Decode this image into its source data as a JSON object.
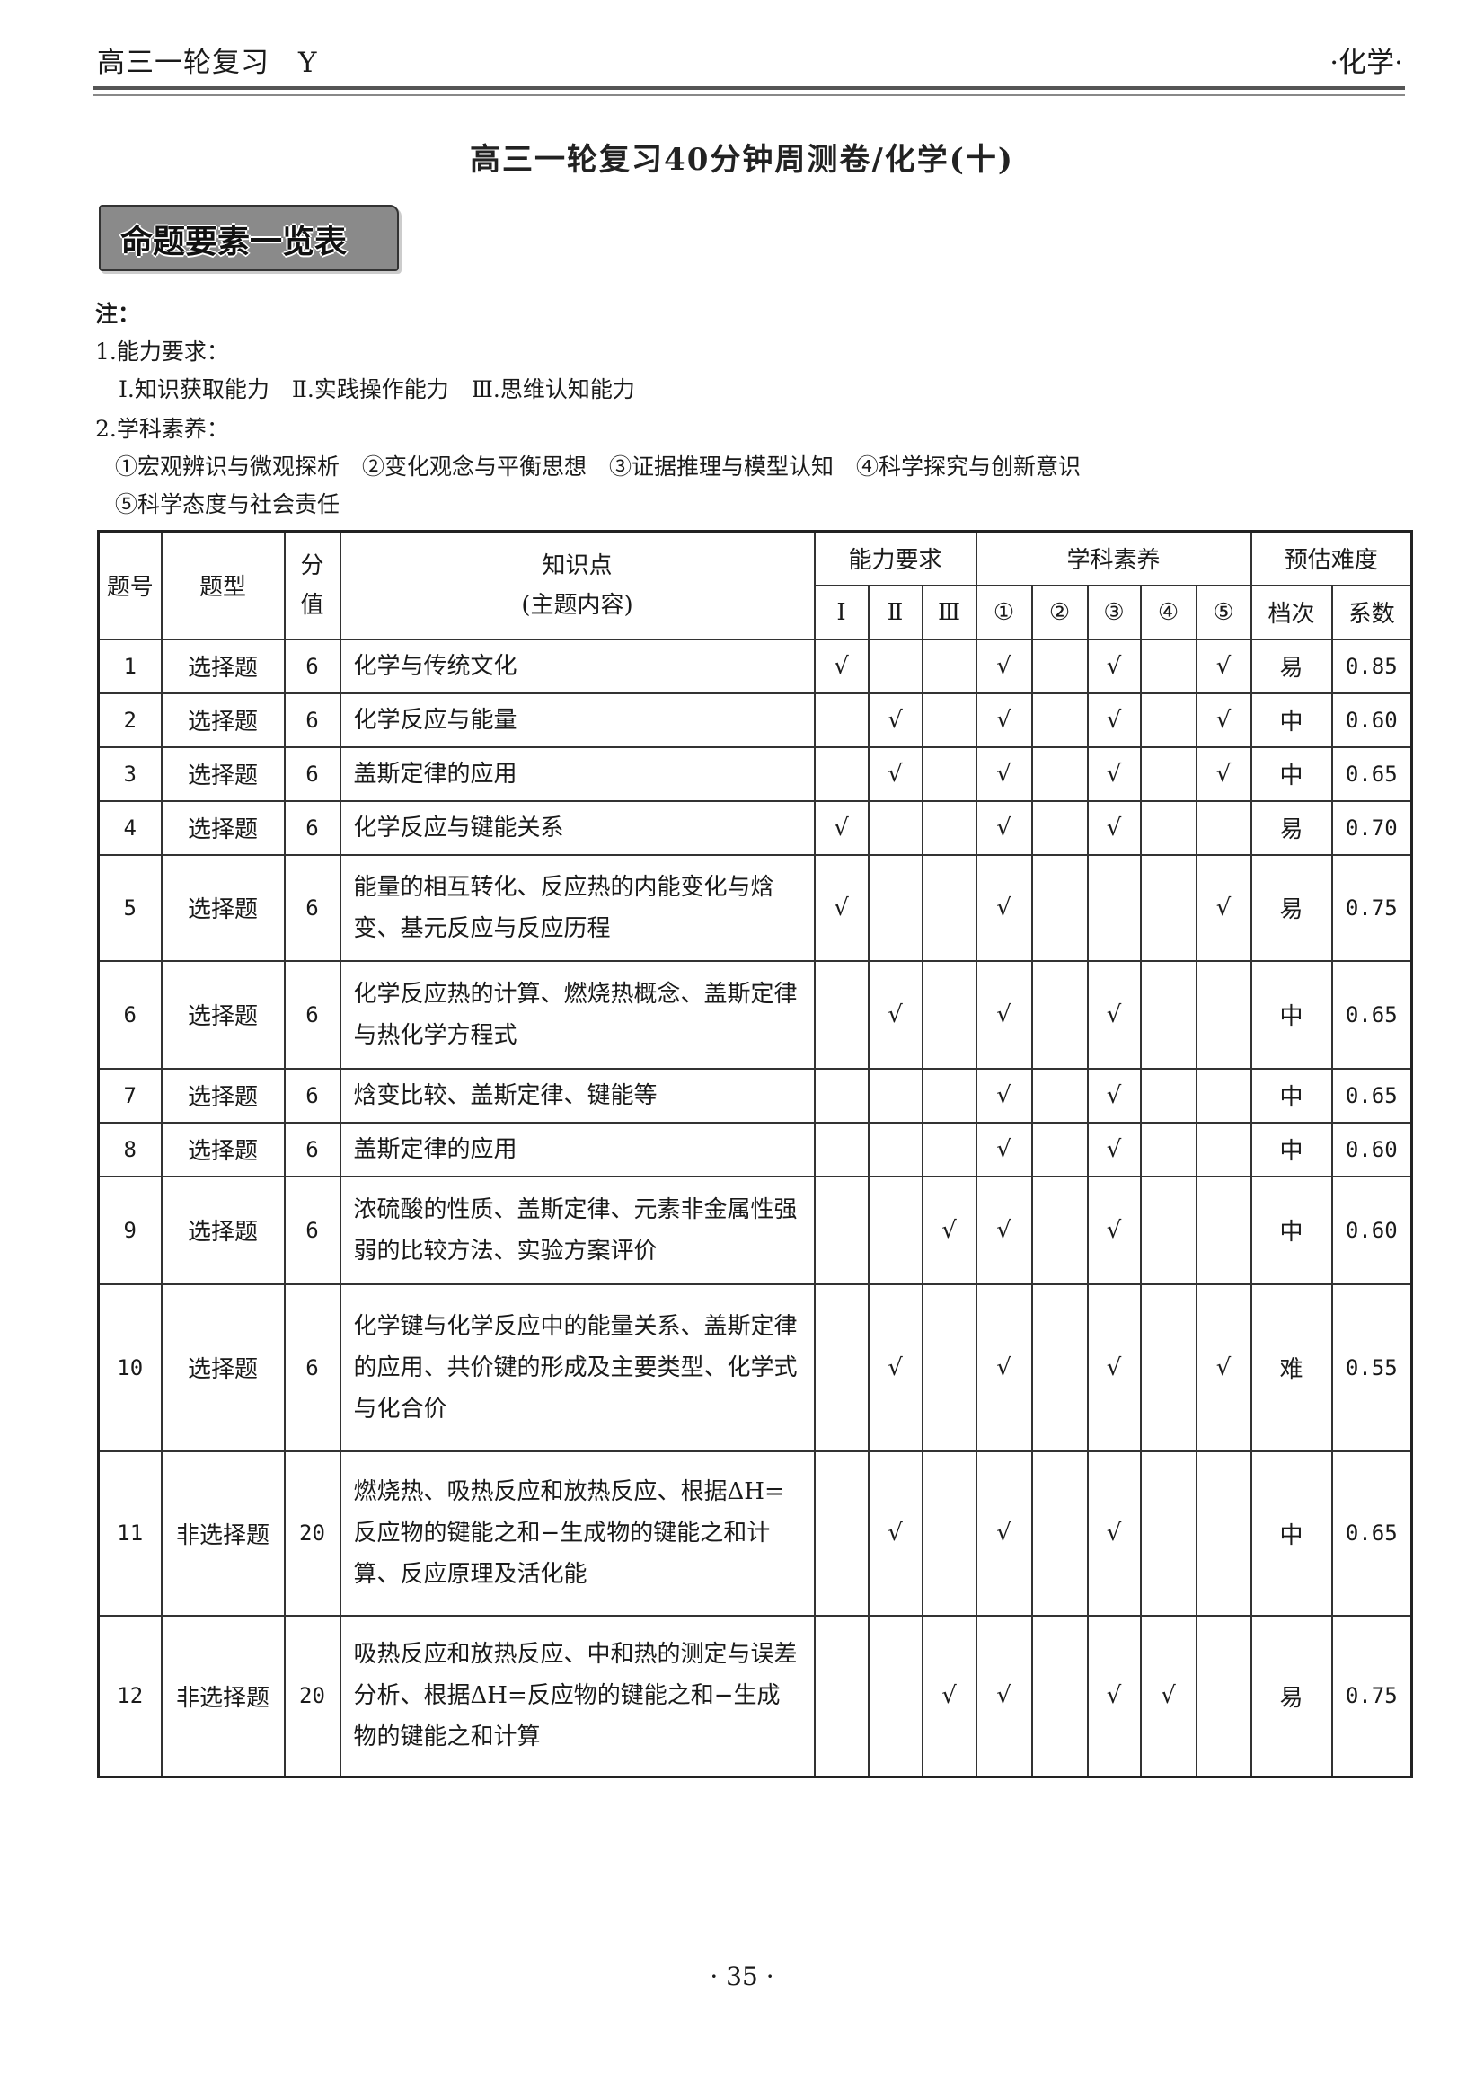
{
  "header": {
    "left": "高三一轮复习　Y",
    "right": "·化学·"
  },
  "title": "高三一轮复习40分钟周测卷/化学(十)",
  "banner": "命题要素一览表",
  "notes": {
    "label": "注：",
    "ability_title": "1.能力要求：",
    "ability_items": "Ⅰ.知识获取能力　Ⅱ.实践操作能力　Ⅲ.思维认知能力",
    "literacy_title": "2.学科素养：",
    "literacy_line1": "①宏观辨识与微观探析　②变化观念与平衡思想　③证据推理与模型认知　④科学探究与创新意识",
    "literacy_line2": "⑤科学态度与社会责任"
  },
  "table": {
    "headers": {
      "no": "题号",
      "type": "题型",
      "score": "分值",
      "knowledge": "知识点",
      "knowledge_sub": "(主题内容)",
      "ability": "能力要求",
      "literacy": "学科素养",
      "difficulty": "预估难度",
      "ability_cols": [
        "Ⅰ",
        "Ⅱ",
        "Ⅲ"
      ],
      "literacy_cols": [
        "①",
        "②",
        "③",
        "④",
        "⑤"
      ],
      "level": "档次",
      "coef": "系数"
    },
    "rows": [
      {
        "no": "1",
        "type": "选择题",
        "score": "6",
        "knowledge": "化学与传统文化",
        "marks": [
          "√",
          "",
          "",
          "√",
          "",
          "√",
          "",
          "√"
        ],
        "level": "易",
        "coef": "0.85"
      },
      {
        "no": "2",
        "type": "选择题",
        "score": "6",
        "knowledge": "化学反应与能量",
        "marks": [
          "",
          "√",
          "",
          "√",
          "",
          "√",
          "",
          "√"
        ],
        "level": "中",
        "coef": "0.60"
      },
      {
        "no": "3",
        "type": "选择题",
        "score": "6",
        "knowledge": "盖斯定律的应用",
        "marks": [
          "",
          "√",
          "",
          "√",
          "",
          "√",
          "",
          "√"
        ],
        "level": "中",
        "coef": "0.65"
      },
      {
        "no": "4",
        "type": "选择题",
        "score": "6",
        "knowledge": "化学反应与键能关系",
        "marks": [
          "√",
          "",
          "",
          "√",
          "",
          "√",
          "",
          ""
        ],
        "level": "易",
        "coef": "0.70"
      },
      {
        "no": "5",
        "type": "选择题",
        "score": "6",
        "knowledge": "能量的相互转化、反应热的内能变化与焓变、基元反应与反应历程",
        "marks": [
          "√",
          "",
          "",
          "√",
          "",
          "",
          "",
          "√"
        ],
        "level": "易",
        "coef": "0.75"
      },
      {
        "no": "6",
        "type": "选择题",
        "score": "6",
        "knowledge": "化学反应热的计算、燃烧热概念、盖斯定律与热化学方程式",
        "marks": [
          "",
          "√",
          "",
          "√",
          "",
          "√",
          "",
          ""
        ],
        "level": "中",
        "coef": "0.65"
      },
      {
        "no": "7",
        "type": "选择题",
        "score": "6",
        "knowledge": "焓变比较、盖斯定律、键能等",
        "marks": [
          "",
          "",
          "",
          "√",
          "",
          "√",
          "",
          ""
        ],
        "level": "中",
        "coef": "0.65"
      },
      {
        "no": "8",
        "type": "选择题",
        "score": "6",
        "knowledge": "盖斯定律的应用",
        "marks": [
          "",
          "",
          "",
          "√",
          "",
          "√",
          "",
          ""
        ],
        "level": "中",
        "coef": "0.60"
      },
      {
        "no": "9",
        "type": "选择题",
        "score": "6",
        "knowledge": "浓硫酸的性质、盖斯定律、元素非金属性强弱的比较方法、实验方案评价",
        "marks": [
          "",
          "",
          "√",
          "√",
          "",
          "√",
          "",
          ""
        ],
        "level": "中",
        "coef": "0.60"
      },
      {
        "no": "10",
        "type": "选择题",
        "score": "6",
        "knowledge": "化学键与化学反应中的能量关系、盖斯定律的应用、共价键的形成及主要类型、化学式与化合价",
        "marks": [
          "",
          "√",
          "",
          "√",
          "",
          "√",
          "",
          "√"
        ],
        "level": "难",
        "coef": "0.55"
      },
      {
        "no": "11",
        "type": "非选择题",
        "score": "20",
        "knowledge": "燃烧热、吸热反应和放热反应、根据ΔH=反应物的键能之和−生成物的键能之和计算、反应原理及活化能",
        "marks": [
          "",
          "√",
          "",
          "√",
          "",
          "√",
          "",
          ""
        ],
        "level": "中",
        "coef": "0.65"
      },
      {
        "no": "12",
        "type": "非选择题",
        "score": "20",
        "knowledge": "吸热反应和放热反应、中和热的测定与误差分析、根据ΔH=反应物的键能之和−生成物的键能之和计算",
        "marks": [
          "",
          "",
          "√",
          "√",
          "",
          "√",
          "√",
          ""
        ],
        "level": "易",
        "coef": "0.75"
      }
    ]
  },
  "page_number": "· 35 ·"
}
